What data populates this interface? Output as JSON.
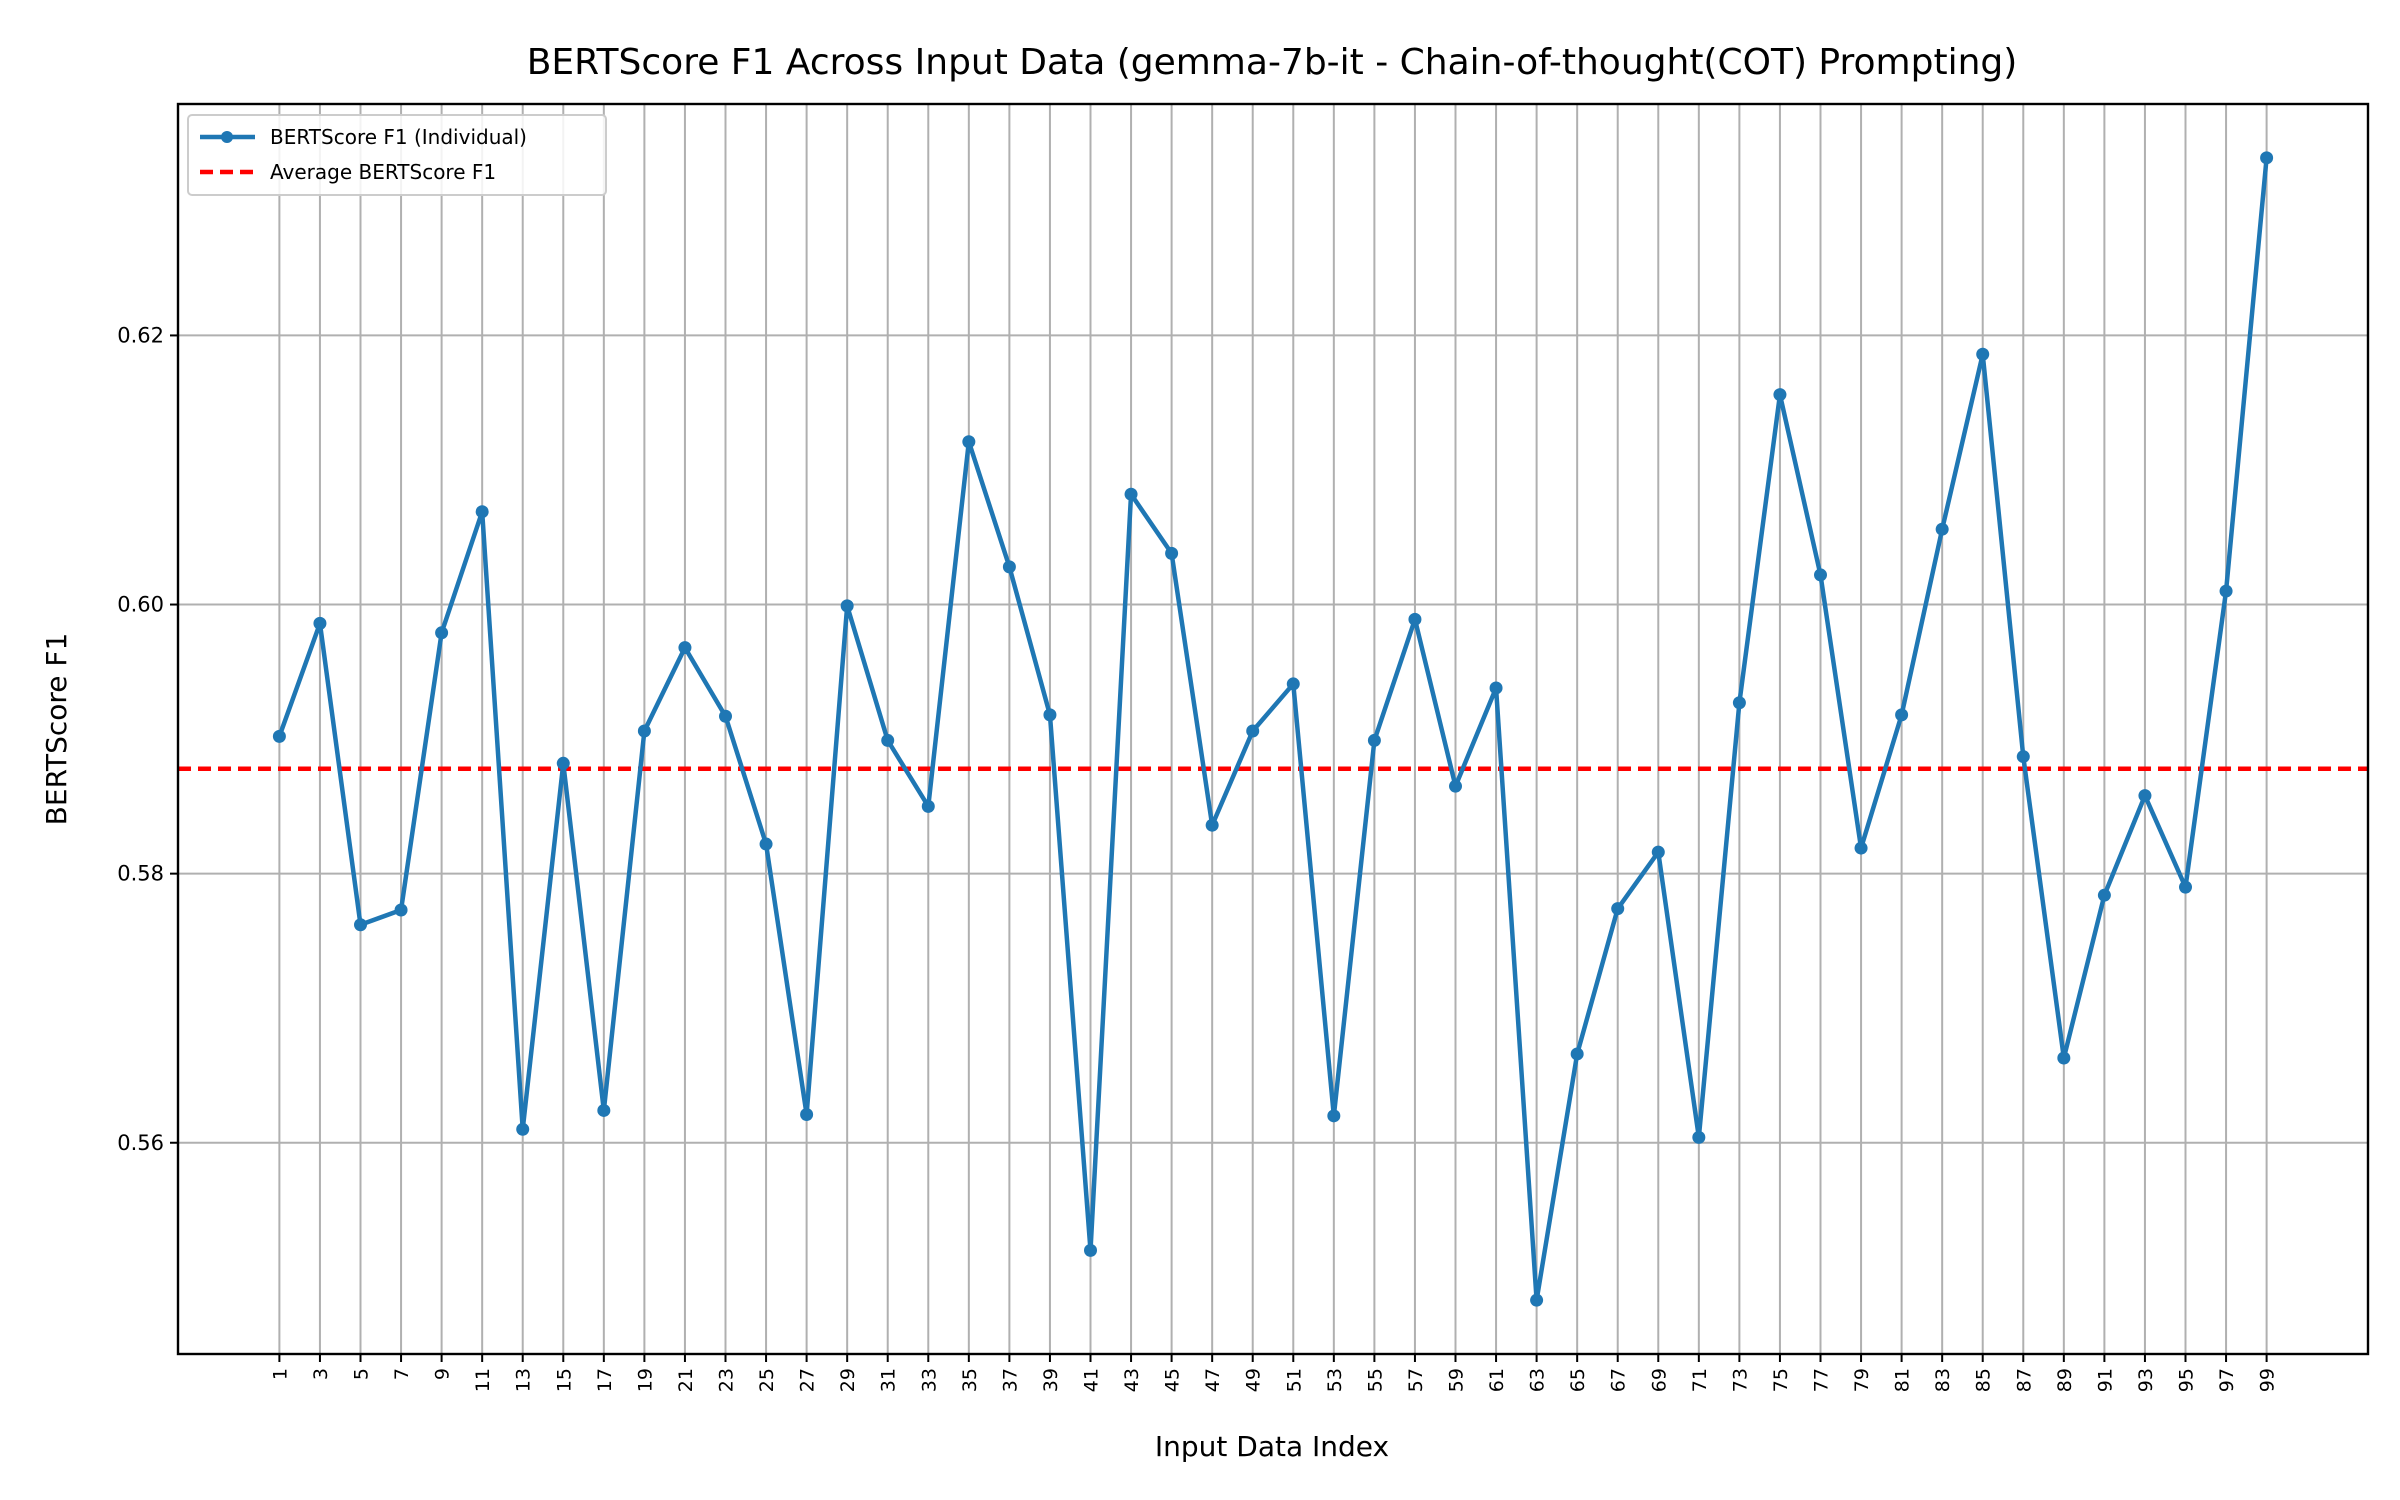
{
  "chart_data": {
    "type": "line",
    "title": "BERTScore F1 Across Input Data (gemma-7b-it - Chain-of-thought(COT) Prompting)",
    "xlabel": "Input Data Index",
    "ylabel": "BERTScore F1",
    "x": [
      1,
      3,
      5,
      7,
      9,
      11,
      13,
      15,
      17,
      19,
      21,
      23,
      25,
      27,
      29,
      31,
      33,
      35,
      37,
      39,
      41,
      43,
      45,
      47,
      49,
      51,
      53,
      55,
      57,
      59,
      61,
      63,
      65,
      67,
      69,
      71,
      73,
      75,
      77,
      79,
      81,
      83,
      85,
      87,
      89,
      91,
      93,
      95,
      97,
      99
    ],
    "xticks": [
      "1",
      "3",
      "5",
      "7",
      "9",
      "11",
      "13",
      "15",
      "17",
      "19",
      "21",
      "23",
      "25",
      "27",
      "29",
      "31",
      "33",
      "35",
      "37",
      "39",
      "41",
      "43",
      "45",
      "47",
      "49",
      "51",
      "53",
      "55",
      "57",
      "59",
      "61",
      "63",
      "65",
      "67",
      "69",
      "71",
      "73",
      "75",
      "77",
      "79",
      "81",
      "83",
      "85",
      "87",
      "89",
      "91",
      "93",
      "95",
      "97",
      "99"
    ],
    "yticks": [
      "0.56",
      "0.58",
      "0.60",
      "0.62"
    ],
    "ytick_values": [
      0.56,
      0.58,
      0.6,
      0.62
    ],
    "xlim": [
      -4,
      104
    ],
    "ylim": [
      0.5443,
      0.6372
    ],
    "grid": true,
    "legend_position": "upper-left",
    "series": [
      {
        "name": "BERTScore F1 (Individual)",
        "color": "#1f77b4",
        "marker": "circle",
        "values": [
          0.5902,
          0.5986,
          0.5762,
          0.5773,
          0.5979,
          0.6069,
          0.561,
          0.5882,
          0.5624,
          0.5906,
          0.5968,
          0.5917,
          0.5822,
          0.5621,
          0.5999,
          0.5899,
          0.585,
          0.6121,
          0.6028,
          0.5918,
          0.552,
          0.6082,
          0.6038,
          0.5836,
          0.5906,
          0.5941,
          0.562,
          0.5899,
          0.5989,
          0.5865,
          0.5938,
          0.5483,
          0.5666,
          0.5774,
          0.5816,
          0.5604,
          0.5927,
          0.6156,
          0.6022,
          0.5819,
          0.5918,
          0.6056,
          0.6186,
          0.5887,
          0.5663,
          0.5784,
          0.5858,
          0.579,
          0.601,
          0.6332
        ]
      }
    ],
    "reference_line": {
      "name": "Average BERTScore F1",
      "color": "#ff0000",
      "style": "dashed",
      "value": 0.5878
    }
  }
}
